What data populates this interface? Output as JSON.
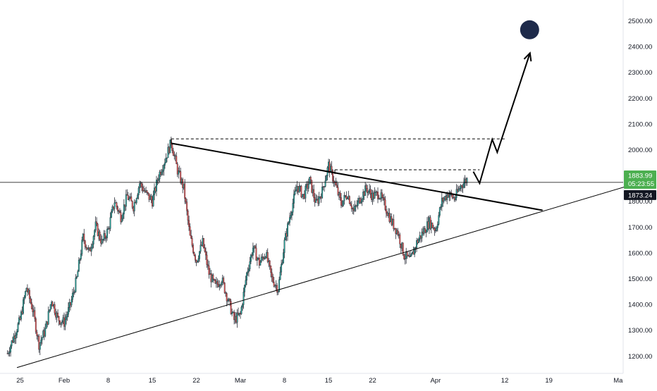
{
  "chart_data": {
    "type": "candlestick",
    "y_axis": {
      "position": "right",
      "range": [
        1140,
        2570
      ],
      "ticks": [
        1200,
        1300,
        1400,
        1500,
        1600,
        1700,
        1800,
        1900,
        2000,
        2100,
        2200,
        2300,
        2400,
        2500
      ],
      "tick_labels": [
        "1200.00",
        "1300.00",
        "1400.00",
        "1500.00",
        "1600.00",
        "1700.00",
        "1800.00",
        "1900.00",
        "2000.00",
        "2100.00",
        "2200.00",
        "2300.00",
        "2400.00",
        "2500.00"
      ]
    },
    "x_axis": {
      "ticks": [
        "25",
        "Feb",
        "8",
        "15",
        "22",
        "Mar",
        "8",
        "15",
        "22",
        "Apr",
        "12",
        "19",
        "Ma"
      ],
      "range_days": [
        -8.5,
        90.5
      ]
    },
    "price_labels": {
      "current": "1883.99",
      "countdown": "05:23:55",
      "horizontal_level": "1873.24"
    },
    "colors": {
      "up": "#26a69a",
      "down": "#ef5350",
      "line": "#000000",
      "badge_green": "#4caf50",
      "badge_black": "#131722",
      "axis_text": "#131722",
      "marker": "#1e2a4a"
    },
    "price_path": [
      [
        -9,
        1210
      ],
      [
        -7,
        1340
      ],
      [
        -6,
        1465
      ],
      [
        -5,
        1380
      ],
      [
        -4,
        1245
      ],
      [
        -3,
        1300
      ],
      [
        -2,
        1420
      ],
      [
        -1,
        1345
      ],
      [
        0,
        1330
      ],
      [
        1,
        1400
      ],
      [
        2,
        1500
      ],
      [
        3,
        1660
      ],
      [
        4,
        1600
      ],
      [
        5,
        1705
      ],
      [
        6,
        1640
      ],
      [
        7,
        1690
      ],
      [
        8,
        1800
      ],
      [
        9,
        1740
      ],
      [
        10,
        1820
      ],
      [
        11,
        1780
      ],
      [
        12,
        1870
      ],
      [
        13,
        1830
      ],
      [
        14,
        1800
      ],
      [
        15,
        1900
      ],
      [
        16,
        1960
      ],
      [
        17,
        2030
      ],
      [
        18,
        1920
      ],
      [
        19,
        1850
      ],
      [
        20,
        1660
      ],
      [
        21,
        1570
      ],
      [
        22,
        1640
      ],
      [
        23,
        1520
      ],
      [
        24,
        1470
      ],
      [
        25,
        1500
      ],
      [
        26,
        1420
      ],
      [
        27,
        1340
      ],
      [
        28,
        1360
      ],
      [
        29,
        1520
      ],
      [
        30,
        1620
      ],
      [
        31,
        1560
      ],
      [
        32,
        1600
      ],
      [
        33,
        1500
      ],
      [
        34,
        1460
      ],
      [
        35,
        1640
      ],
      [
        36,
        1760
      ],
      [
        37,
        1860
      ],
      [
        38,
        1820
      ],
      [
        39,
        1880
      ],
      [
        40,
        1790
      ],
      [
        41,
        1840
      ],
      [
        42,
        1940
      ],
      [
        43,
        1870
      ],
      [
        44,
        1790
      ],
      [
        45,
        1830
      ],
      [
        46,
        1760
      ],
      [
        47,
        1810
      ],
      [
        48,
        1850
      ],
      [
        49,
        1820
      ],
      [
        50,
        1830
      ],
      [
        51,
        1780
      ],
      [
        52,
        1720
      ],
      [
        53,
        1680
      ],
      [
        54,
        1590
      ],
      [
        55,
        1570
      ],
      [
        56,
        1640
      ],
      [
        57,
        1680
      ],
      [
        58,
        1720
      ],
      [
        59,
        1690
      ],
      [
        60,
        1800
      ],
      [
        61,
        1830
      ],
      [
        62,
        1810
      ],
      [
        63,
        1860
      ],
      [
        64,
        1885
      ]
    ],
    "horizontal_line": {
      "price": 1873.24
    },
    "annotations": {
      "support_trendline": {
        "from": {
          "day": -7.5,
          "price": 1155
        },
        "to": {
          "day": 91,
          "price": 1870
        }
      },
      "resistance_trendline": {
        "from": {
          "day": 17,
          "price": 2025
        },
        "to": {
          "day": 76,
          "price": 1765
        }
      },
      "dashed_level_1": {
        "from": {
          "day": 17,
          "price": 2042
        },
        "to": {
          "day": 70,
          "price": 2042
        }
      },
      "dashed_level_2": {
        "from": {
          "day": 43,
          "price": 1922
        },
        "to": {
          "day": 66,
          "price": 1922
        }
      },
      "projection_path": [
        {
          "day": 65,
          "price": 1915
        },
        {
          "day": 66,
          "price": 1870
        },
        {
          "day": 68,
          "price": 2040
        },
        {
          "day": 68.8,
          "price": 1990
        },
        {
          "day": 74,
          "price": 2375
        }
      ],
      "target_marker": {
        "day": 74,
        "price": 2465
      }
    }
  }
}
